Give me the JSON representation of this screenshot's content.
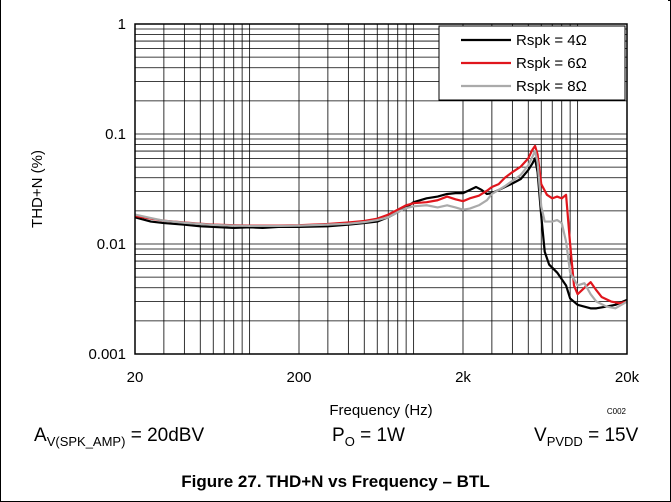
{
  "chart_data": {
    "type": "line",
    "title": "",
    "xlabel": "Frequency (Hz)",
    "ylabel": "THD+N (%)",
    "x_scale": "log",
    "y_scale": "log",
    "xlim": [
      20,
      20000
    ],
    "ylim": [
      0.001,
      1
    ],
    "x_ticks": [
      20,
      200,
      2000,
      20000
    ],
    "x_tick_labels": [
      "20",
      "200",
      "2k",
      "20k"
    ],
    "y_ticks": [
      0.001,
      0.01,
      0.1,
      1
    ],
    "y_tick_labels": [
      "0.001",
      "0.01",
      "0.1",
      "1"
    ],
    "grid": true,
    "legend_position": "top-right",
    "corner_code": "C002",
    "series": [
      {
        "name": "Rspk = 4Ω",
        "color": "#000000",
        "points": [
          [
            20,
            0.0175
          ],
          [
            25,
            0.016
          ],
          [
            30,
            0.0155
          ],
          [
            40,
            0.015
          ],
          [
            50,
            0.0145
          ],
          [
            60,
            0.0143
          ],
          [
            80,
            0.014
          ],
          [
            100,
            0.0142
          ],
          [
            120,
            0.014
          ],
          [
            150,
            0.0143
          ],
          [
            200,
            0.0143
          ],
          [
            300,
            0.0145
          ],
          [
            400,
            0.015
          ],
          [
            500,
            0.0155
          ],
          [
            600,
            0.016
          ],
          [
            700,
            0.0175
          ],
          [
            800,
            0.0195
          ],
          [
            900,
            0.0215
          ],
          [
            1000,
            0.024
          ],
          [
            1200,
            0.026
          ],
          [
            1400,
            0.027
          ],
          [
            1600,
            0.0285
          ],
          [
            1800,
            0.029
          ],
          [
            2000,
            0.029
          ],
          [
            2200,
            0.031
          ],
          [
            2400,
            0.033
          ],
          [
            2600,
            0.031
          ],
          [
            2800,
            0.0285
          ],
          [
            3000,
            0.029
          ],
          [
            3300,
            0.031
          ],
          [
            3600,
            0.033
          ],
          [
            4000,
            0.0355
          ],
          [
            4500,
            0.039
          ],
          [
            5000,
            0.047
          ],
          [
            5300,
            0.054
          ],
          [
            5500,
            0.06
          ],
          [
            5700,
            0.045
          ],
          [
            6000,
            0.018
          ],
          [
            6300,
            0.0085
          ],
          [
            6700,
            0.0065
          ],
          [
            7500,
            0.0055
          ],
          [
            8500,
            0.0042
          ],
          [
            9000,
            0.0032
          ],
          [
            10000,
            0.0028
          ],
          [
            12000,
            0.0026
          ],
          [
            13000,
            0.0026
          ],
          [
            15000,
            0.0027
          ],
          [
            17000,
            0.0028
          ],
          [
            20000,
            0.0031
          ]
        ]
      },
      {
        "name": "Rspk = 6Ω",
        "color": "#e0161d",
        "points": [
          [
            20,
            0.018
          ],
          [
            25,
            0.017
          ],
          [
            30,
            0.0163
          ],
          [
            40,
            0.0157
          ],
          [
            50,
            0.0153
          ],
          [
            60,
            0.015
          ],
          [
            80,
            0.0148
          ],
          [
            100,
            0.0147
          ],
          [
            150,
            0.0147
          ],
          [
            200,
            0.0148
          ],
          [
            300,
            0.0152
          ],
          [
            400,
            0.0157
          ],
          [
            500,
            0.0162
          ],
          [
            600,
            0.017
          ],
          [
            700,
            0.0185
          ],
          [
            800,
            0.0205
          ],
          [
            900,
            0.0225
          ],
          [
            1000,
            0.0235
          ],
          [
            1200,
            0.024
          ],
          [
            1400,
            0.025
          ],
          [
            1600,
            0.027
          ],
          [
            1800,
            0.0255
          ],
          [
            2000,
            0.0245
          ],
          [
            2200,
            0.026
          ],
          [
            2500,
            0.0275
          ],
          [
            2800,
            0.0305
          ],
          [
            3000,
            0.033
          ],
          [
            3300,
            0.035
          ],
          [
            3600,
            0.04
          ],
          [
            4000,
            0.045
          ],
          [
            4500,
            0.0505
          ],
          [
            5000,
            0.06
          ],
          [
            5300,
            0.072
          ],
          [
            5500,
            0.078
          ],
          [
            5700,
            0.065
          ],
          [
            6000,
            0.035
          ],
          [
            6500,
            0.028
          ],
          [
            7000,
            0.026
          ],
          [
            7500,
            0.027
          ],
          [
            8000,
            0.026
          ],
          [
            8500,
            0.028
          ],
          [
            9000,
            0.01
          ],
          [
            9500,
            0.0042
          ],
          [
            10000,
            0.0035
          ],
          [
            11000,
            0.004
          ],
          [
            12000,
            0.0045
          ],
          [
            13000,
            0.0038
          ],
          [
            14000,
            0.0033
          ],
          [
            16000,
            0.003
          ],
          [
            18000,
            0.0029
          ],
          [
            20000,
            0.003
          ]
        ]
      },
      {
        "name": "Rspk = 8Ω",
        "color": "#aaaaaa",
        "points": [
          [
            20,
            0.0185
          ],
          [
            25,
            0.0172
          ],
          [
            30,
            0.0163
          ],
          [
            40,
            0.0156
          ],
          [
            50,
            0.0152
          ],
          [
            60,
            0.0149
          ],
          [
            80,
            0.0147
          ],
          [
            100,
            0.0146
          ],
          [
            150,
            0.0146
          ],
          [
            200,
            0.0147
          ],
          [
            300,
            0.015
          ],
          [
            400,
            0.0153
          ],
          [
            500,
            0.0158
          ],
          [
            600,
            0.0165
          ],
          [
            700,
            0.0175
          ],
          [
            800,
            0.0195
          ],
          [
            900,
            0.0212
          ],
          [
            1000,
            0.022
          ],
          [
            1200,
            0.0225
          ],
          [
            1400,
            0.0215
          ],
          [
            1600,
            0.0225
          ],
          [
            1800,
            0.0215
          ],
          [
            2000,
            0.0205
          ],
          [
            2200,
            0.021
          ],
          [
            2500,
            0.0225
          ],
          [
            2800,
            0.025
          ],
          [
            3000,
            0.0285
          ],
          [
            3300,
            0.031
          ],
          [
            3600,
            0.0335
          ],
          [
            4000,
            0.0375
          ],
          [
            4500,
            0.0425
          ],
          [
            5000,
            0.052
          ],
          [
            5300,
            0.062
          ],
          [
            5500,
            0.07
          ],
          [
            5700,
            0.055
          ],
          [
            6000,
            0.022
          ],
          [
            6300,
            0.016
          ],
          [
            7000,
            0.016
          ],
          [
            7500,
            0.0165
          ],
          [
            8000,
            0.0155
          ],
          [
            8500,
            0.0105
          ],
          [
            9000,
            0.0055
          ],
          [
            10000,
            0.0042
          ],
          [
            11000,
            0.0044
          ],
          [
            12000,
            0.0035
          ],
          [
            13000,
            0.003
          ],
          [
            15000,
            0.0027
          ],
          [
            17000,
            0.0026
          ],
          [
            20000,
            0.003
          ]
        ]
      }
    ]
  },
  "conditions": {
    "gain": {
      "main": "A",
      "sub": "V(SPK_AMP)",
      "value": " = 20dBV"
    },
    "power": {
      "main": "P",
      "sub": "O",
      "value": " = 1W"
    },
    "supply": {
      "main": "V",
      "sub": "PVDD",
      "value": " = 15V"
    }
  },
  "caption": "Figure 27. THD+N vs Frequency – BTL"
}
